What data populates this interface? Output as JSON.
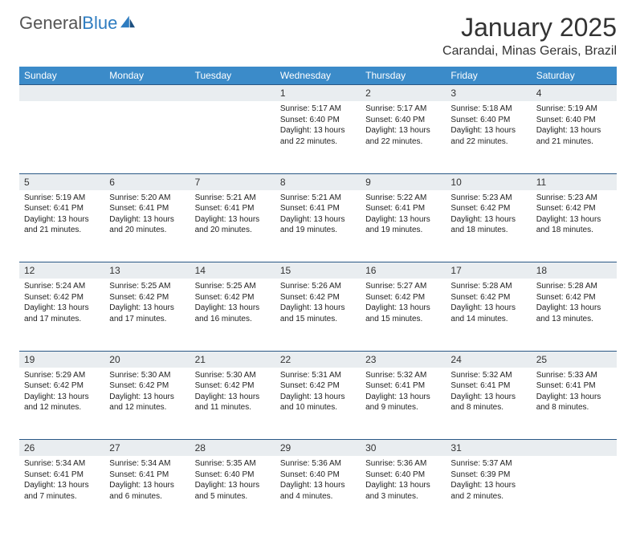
{
  "brand": {
    "word1": "General",
    "word2": "Blue"
  },
  "title": "January 2025",
  "location": "Carandai, Minas Gerais, Brazil",
  "colors": {
    "header_bg": "#3b8bc9",
    "header_text": "#ffffff",
    "daynum_bg": "#e9edf0",
    "rule": "#2a5885",
    "brand_blue": "#2e7cc0",
    "text": "#222222"
  },
  "weekdays": [
    "Sunday",
    "Monday",
    "Tuesday",
    "Wednesday",
    "Thursday",
    "Friday",
    "Saturday"
  ],
  "weeks": [
    {
      "nums": [
        "",
        "",
        "",
        "1",
        "2",
        "3",
        "4"
      ],
      "cells": [
        {},
        {},
        {},
        {
          "sunrise": "Sunrise: 5:17 AM",
          "sunset": "Sunset: 6:40 PM",
          "day1": "Daylight: 13 hours",
          "day2": "and 22 minutes."
        },
        {
          "sunrise": "Sunrise: 5:17 AM",
          "sunset": "Sunset: 6:40 PM",
          "day1": "Daylight: 13 hours",
          "day2": "and 22 minutes."
        },
        {
          "sunrise": "Sunrise: 5:18 AM",
          "sunset": "Sunset: 6:40 PM",
          "day1": "Daylight: 13 hours",
          "day2": "and 22 minutes."
        },
        {
          "sunrise": "Sunrise: 5:19 AM",
          "sunset": "Sunset: 6:40 PM",
          "day1": "Daylight: 13 hours",
          "day2": "and 21 minutes."
        }
      ]
    },
    {
      "nums": [
        "5",
        "6",
        "7",
        "8",
        "9",
        "10",
        "11"
      ],
      "cells": [
        {
          "sunrise": "Sunrise: 5:19 AM",
          "sunset": "Sunset: 6:41 PM",
          "day1": "Daylight: 13 hours",
          "day2": "and 21 minutes."
        },
        {
          "sunrise": "Sunrise: 5:20 AM",
          "sunset": "Sunset: 6:41 PM",
          "day1": "Daylight: 13 hours",
          "day2": "and 20 minutes."
        },
        {
          "sunrise": "Sunrise: 5:21 AM",
          "sunset": "Sunset: 6:41 PM",
          "day1": "Daylight: 13 hours",
          "day2": "and 20 minutes."
        },
        {
          "sunrise": "Sunrise: 5:21 AM",
          "sunset": "Sunset: 6:41 PM",
          "day1": "Daylight: 13 hours",
          "day2": "and 19 minutes."
        },
        {
          "sunrise": "Sunrise: 5:22 AM",
          "sunset": "Sunset: 6:41 PM",
          "day1": "Daylight: 13 hours",
          "day2": "and 19 minutes."
        },
        {
          "sunrise": "Sunrise: 5:23 AM",
          "sunset": "Sunset: 6:42 PM",
          "day1": "Daylight: 13 hours",
          "day2": "and 18 minutes."
        },
        {
          "sunrise": "Sunrise: 5:23 AM",
          "sunset": "Sunset: 6:42 PM",
          "day1": "Daylight: 13 hours",
          "day2": "and 18 minutes."
        }
      ]
    },
    {
      "nums": [
        "12",
        "13",
        "14",
        "15",
        "16",
        "17",
        "18"
      ],
      "cells": [
        {
          "sunrise": "Sunrise: 5:24 AM",
          "sunset": "Sunset: 6:42 PM",
          "day1": "Daylight: 13 hours",
          "day2": "and 17 minutes."
        },
        {
          "sunrise": "Sunrise: 5:25 AM",
          "sunset": "Sunset: 6:42 PM",
          "day1": "Daylight: 13 hours",
          "day2": "and 17 minutes."
        },
        {
          "sunrise": "Sunrise: 5:25 AM",
          "sunset": "Sunset: 6:42 PM",
          "day1": "Daylight: 13 hours",
          "day2": "and 16 minutes."
        },
        {
          "sunrise": "Sunrise: 5:26 AM",
          "sunset": "Sunset: 6:42 PM",
          "day1": "Daylight: 13 hours",
          "day2": "and 15 minutes."
        },
        {
          "sunrise": "Sunrise: 5:27 AM",
          "sunset": "Sunset: 6:42 PM",
          "day1": "Daylight: 13 hours",
          "day2": "and 15 minutes."
        },
        {
          "sunrise": "Sunrise: 5:28 AM",
          "sunset": "Sunset: 6:42 PM",
          "day1": "Daylight: 13 hours",
          "day2": "and 14 minutes."
        },
        {
          "sunrise": "Sunrise: 5:28 AM",
          "sunset": "Sunset: 6:42 PM",
          "day1": "Daylight: 13 hours",
          "day2": "and 13 minutes."
        }
      ]
    },
    {
      "nums": [
        "19",
        "20",
        "21",
        "22",
        "23",
        "24",
        "25"
      ],
      "cells": [
        {
          "sunrise": "Sunrise: 5:29 AM",
          "sunset": "Sunset: 6:42 PM",
          "day1": "Daylight: 13 hours",
          "day2": "and 12 minutes."
        },
        {
          "sunrise": "Sunrise: 5:30 AM",
          "sunset": "Sunset: 6:42 PM",
          "day1": "Daylight: 13 hours",
          "day2": "and 12 minutes."
        },
        {
          "sunrise": "Sunrise: 5:30 AM",
          "sunset": "Sunset: 6:42 PM",
          "day1": "Daylight: 13 hours",
          "day2": "and 11 minutes."
        },
        {
          "sunrise": "Sunrise: 5:31 AM",
          "sunset": "Sunset: 6:42 PM",
          "day1": "Daylight: 13 hours",
          "day2": "and 10 minutes."
        },
        {
          "sunrise": "Sunrise: 5:32 AM",
          "sunset": "Sunset: 6:41 PM",
          "day1": "Daylight: 13 hours",
          "day2": "and 9 minutes."
        },
        {
          "sunrise": "Sunrise: 5:32 AM",
          "sunset": "Sunset: 6:41 PM",
          "day1": "Daylight: 13 hours",
          "day2": "and 8 minutes."
        },
        {
          "sunrise": "Sunrise: 5:33 AM",
          "sunset": "Sunset: 6:41 PM",
          "day1": "Daylight: 13 hours",
          "day2": "and 8 minutes."
        }
      ]
    },
    {
      "nums": [
        "26",
        "27",
        "28",
        "29",
        "30",
        "31",
        ""
      ],
      "cells": [
        {
          "sunrise": "Sunrise: 5:34 AM",
          "sunset": "Sunset: 6:41 PM",
          "day1": "Daylight: 13 hours",
          "day2": "and 7 minutes."
        },
        {
          "sunrise": "Sunrise: 5:34 AM",
          "sunset": "Sunset: 6:41 PM",
          "day1": "Daylight: 13 hours",
          "day2": "and 6 minutes."
        },
        {
          "sunrise": "Sunrise: 5:35 AM",
          "sunset": "Sunset: 6:40 PM",
          "day1": "Daylight: 13 hours",
          "day2": "and 5 minutes."
        },
        {
          "sunrise": "Sunrise: 5:36 AM",
          "sunset": "Sunset: 6:40 PM",
          "day1": "Daylight: 13 hours",
          "day2": "and 4 minutes."
        },
        {
          "sunrise": "Sunrise: 5:36 AM",
          "sunset": "Sunset: 6:40 PM",
          "day1": "Daylight: 13 hours",
          "day2": "and 3 minutes."
        },
        {
          "sunrise": "Sunrise: 5:37 AM",
          "sunset": "Sunset: 6:39 PM",
          "day1": "Daylight: 13 hours",
          "day2": "and 2 minutes."
        },
        {}
      ]
    }
  ]
}
